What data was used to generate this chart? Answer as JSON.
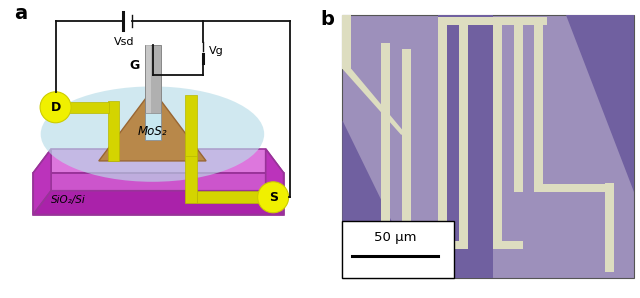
{
  "fig_width": 6.4,
  "fig_height": 2.98,
  "dpi": 100,
  "panel_a_label": "a",
  "panel_b_label": "b",
  "label_fontsize": 14,
  "label_fontweight": "bold",
  "substrate_color": "#cc55cc",
  "substrate_top_color": "#dd77dd",
  "substrate_left_color": "#bb33bb",
  "substrate_edge_color": "#993399",
  "liquid_color": "#b8dde8",
  "liquid_alpha": 0.65,
  "gate_rod_color": "#b0b0b0",
  "gate_rod_edge": "#888888",
  "gate_tip_color": "#c8e8f0",
  "gold_color": "#d4d400",
  "gold_edge": "#b8b800",
  "mos2_color": "#b8884a",
  "mos2_edge": "#996633",
  "D_color": "#f0f000",
  "S_color": "#f0f000",
  "wire_color": "#111111",
  "G_label": "G",
  "D_label": "D",
  "S_label": "S",
  "Vsd_label": "Vsd",
  "Vg_label": "Vg",
  "SiO2Si_label": "SiO₂/Si",
  "MoS2_label": "MoS₂",
  "scale_bar_label": "50 μm",
  "bg_color": "#ffffff",
  "photo_bg_color": "#9d90bb",
  "photo_light_bg": "#b0a5c8",
  "photo_electrode_color": "#ddddc0",
  "photo_dark_tri": "#7060a0",
  "photo_mid_tri": "#8878b5"
}
